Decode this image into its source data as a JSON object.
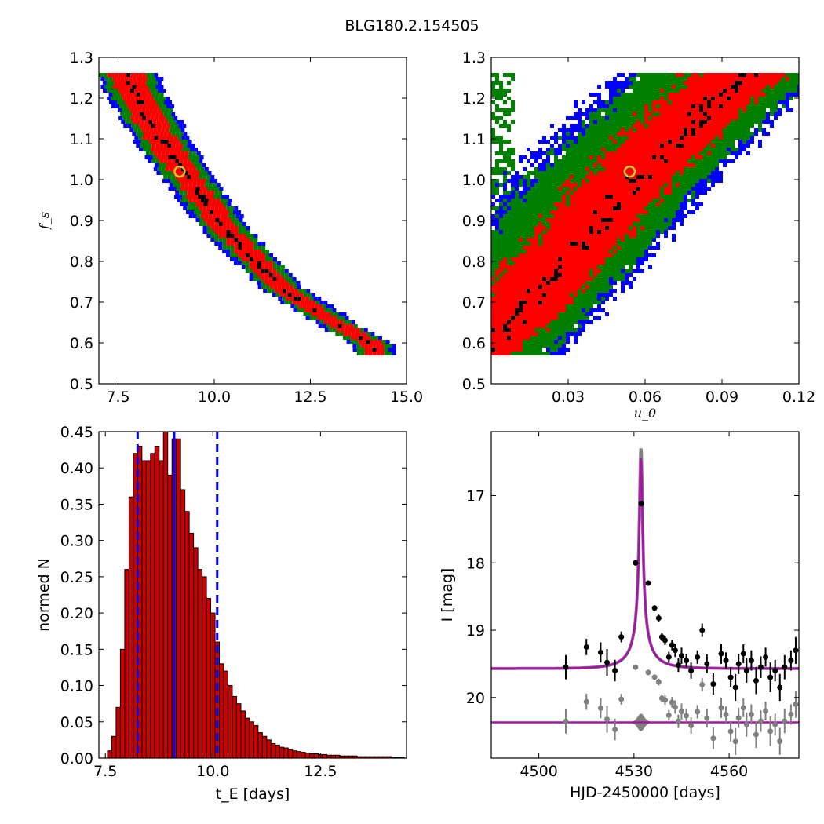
{
  "title": "BLG180.2.154505",
  "colors": {
    "one_sigma": "#000000",
    "two_sigma": "#ff0000",
    "three_sigma": "#008000",
    "four_sigma": "#0000ff",
    "bar_fill": "#cc0000",
    "dashed": "#0000ff",
    "model": "#aa11aa",
    "residual": "#808080",
    "marker_edge": "#c8c832"
  },
  "chart_data": [
    {
      "type": "scatter",
      "panel": "top-left",
      "xlabel": "",
      "ylabel": "f_s",
      "xlim": [
        7.0,
        15.0
      ],
      "ylim": [
        0.5,
        1.3
      ],
      "xticks": [
        "7.5",
        "10.0",
        "12.5",
        "15.0"
      ],
      "yticks": [
        "0.5",
        "0.6",
        "0.7",
        "0.8",
        "0.9",
        "1.0",
        "1.1",
        "1.2",
        "1.3"
      ],
      "x": [
        7.7,
        8.0,
        8.3,
        8.6,
        8.9,
        9.2,
        9.5,
        9.8,
        10.1,
        10.4,
        10.8,
        11.2,
        11.6,
        12.0,
        12.5,
        13.0,
        13.5,
        14.1
      ],
      "y": [
        1.26,
        1.2,
        1.15,
        1.1,
        1.06,
        1.02,
        0.98,
        0.94,
        0.9,
        0.87,
        0.83,
        0.79,
        0.75,
        0.72,
        0.69,
        0.66,
        0.63,
        0.6
      ],
      "best_fit": {
        "x": 9.1,
        "y": 1.02
      }
    },
    {
      "type": "scatter",
      "panel": "top-right",
      "xlabel": "u_0",
      "ylabel": "",
      "xlim": [
        0.0,
        0.12
      ],
      "ylim": [
        0.5,
        1.3
      ],
      "xticks": [
        "0.03",
        "0.06",
        "0.09",
        "0.12"
      ],
      "yticks": [
        "0.5",
        "0.6",
        "0.7",
        "0.8",
        "0.9",
        "1.0",
        "1.1",
        "1.2",
        "1.3"
      ],
      "x": [
        0.002,
        0.012,
        0.022,
        0.032,
        0.042,
        0.05,
        0.058,
        0.066,
        0.074,
        0.082,
        0.09,
        0.098
      ],
      "y": [
        0.62,
        0.68,
        0.75,
        0.82,
        0.89,
        0.95,
        1.01,
        1.06,
        1.11,
        1.16,
        1.21,
        1.25
      ],
      "best_fit": {
        "x": 0.054,
        "y": 1.02
      }
    },
    {
      "type": "bar",
      "panel": "bottom-left",
      "xlabel": "t_E [days]",
      "ylabel": "normed N",
      "xlim": [
        7.35,
        14.5
      ],
      "ylim": [
        0.0,
        0.45
      ],
      "xticks": [
        "7.5",
        "10.0",
        "12.5"
      ],
      "yticks": [
        "0.00",
        "0.05",
        "0.10",
        "0.15",
        "0.20",
        "0.25",
        "0.30",
        "0.35",
        "0.40",
        "0.45"
      ],
      "bin_start": 7.55,
      "bin_width": 0.1,
      "values": [
        0.01,
        0.03,
        0.07,
        0.15,
        0.26,
        0.36,
        0.42,
        0.43,
        0.41,
        0.41,
        0.42,
        0.43,
        0.41,
        0.46,
        0.39,
        0.44,
        0.44,
        0.37,
        0.34,
        0.31,
        0.29,
        0.26,
        0.25,
        0.22,
        0.2,
        0.16,
        0.13,
        0.12,
        0.1,
        0.085,
        0.075,
        0.065,
        0.055,
        0.05,
        0.045,
        0.035,
        0.03,
        0.025,
        0.02,
        0.018,
        0.015,
        0.014,
        0.012,
        0.01,
        0.009,
        0.008,
        0.007,
        0.006,
        0.006,
        0.005,
        0.005,
        0.004,
        0.004,
        0.004,
        0.003,
        0.003,
        0.003,
        0.003,
        0.002,
        0.002,
        0.002,
        0.002,
        0.002,
        0.002,
        0.002,
        0.002,
        0.001,
        0.001,
        0.001
      ],
      "vlines": [
        {
          "x": 8.25,
          "style": "dashed"
        },
        {
          "x": 9.1,
          "style": "solid"
        },
        {
          "x": 10.1,
          "style": "dashed"
        }
      ]
    },
    {
      "type": "line",
      "panel": "bottom-right",
      "xlabel": "HJD-2450000 [days]",
      "ylabel": "I [mag]",
      "xlim": [
        4485,
        4582
      ],
      "ylim": [
        20.9,
        16.05
      ],
      "xticks": [
        "4500",
        "4530",
        "4560"
      ],
      "yticks": [
        "17",
        "18",
        "19",
        "20"
      ],
      "model": {
        "t0": 4532.2,
        "baseline": 19.57,
        "peak": 16.45,
        "tE": 9.1,
        "u0": 0.054
      },
      "residual_baseline": 20.37,
      "points": [
        {
          "x": 4508.5,
          "y": 19.55,
          "e": 0.18
        },
        {
          "x": 4515.0,
          "y": 19.25,
          "e": 0.12
        },
        {
          "x": 4519.5,
          "y": 19.33,
          "e": 0.15
        },
        {
          "x": 4521.5,
          "y": 19.48,
          "e": 0.2
        },
        {
          "x": 4524.0,
          "y": 19.6,
          "e": 0.16
        },
        {
          "x": 4526.0,
          "y": 19.1,
          "e": 0.08
        },
        {
          "x": 4530.5,
          "y": 18.0,
          "e": 0.04
        },
        {
          "x": 4532.3,
          "y": 17.12,
          "e": 0.03
        },
        {
          "x": 4534.5,
          "y": 18.3,
          "e": 0.04
        },
        {
          "x": 4536.5,
          "y": 18.67,
          "e": 0.04
        },
        {
          "x": 4537.8,
          "y": 18.82,
          "e": 0.05
        },
        {
          "x": 4538.8,
          "y": 19.1,
          "e": 0.06
        },
        {
          "x": 4539.8,
          "y": 19.15,
          "e": 0.07
        },
        {
          "x": 4541.0,
          "y": 19.4,
          "e": 0.08
        },
        {
          "x": 4542.0,
          "y": 19.22,
          "e": 0.08
        },
        {
          "x": 4543.0,
          "y": 19.3,
          "e": 0.1
        },
        {
          "x": 4544.0,
          "y": 19.52,
          "e": 0.1
        },
        {
          "x": 4545.0,
          "y": 19.38,
          "e": 0.12
        },
        {
          "x": 4546.5,
          "y": 19.45,
          "e": 0.1
        },
        {
          "x": 4548.0,
          "y": 19.6,
          "e": 0.12
        },
        {
          "x": 4550.0,
          "y": 19.4,
          "e": 0.1
        },
        {
          "x": 4551.5,
          "y": 19.0,
          "e": 0.1
        },
        {
          "x": 4553.0,
          "y": 19.5,
          "e": 0.14
        },
        {
          "x": 4555.0,
          "y": 19.8,
          "e": 0.16
        },
        {
          "x": 4557.5,
          "y": 19.35,
          "e": 0.15
        },
        {
          "x": 4559.0,
          "y": 19.45,
          "e": 0.12
        },
        {
          "x": 4560.5,
          "y": 19.7,
          "e": 0.15
        },
        {
          "x": 4562.0,
          "y": 19.85,
          "e": 0.2
        },
        {
          "x": 4563.0,
          "y": 19.5,
          "e": 0.15
        },
        {
          "x": 4564.5,
          "y": 19.35,
          "e": 0.14
        },
        {
          "x": 4565.5,
          "y": 19.6,
          "e": 0.18
        },
        {
          "x": 4567.0,
          "y": 19.45,
          "e": 0.15
        },
        {
          "x": 4568.5,
          "y": 19.75,
          "e": 0.2
        },
        {
          "x": 4570.0,
          "y": 19.55,
          "e": 0.16
        },
        {
          "x": 4571.5,
          "y": 19.4,
          "e": 0.14
        },
        {
          "x": 4573.0,
          "y": 19.7,
          "e": 0.22
        },
        {
          "x": 4574.5,
          "y": 19.6,
          "e": 0.16
        },
        {
          "x": 4576.0,
          "y": 19.85,
          "e": 0.2
        },
        {
          "x": 4577.5,
          "y": 19.55,
          "e": 0.18
        },
        {
          "x": 4579.5,
          "y": 19.45,
          "e": 0.15
        },
        {
          "x": 4581.0,
          "y": 19.3,
          "e": 0.2
        }
      ]
    }
  ]
}
